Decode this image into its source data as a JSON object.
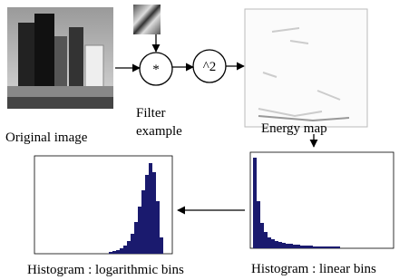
{
  "original_image": {
    "label": "Original image"
  },
  "filter": {
    "operator": "*",
    "label_lines": [
      "Filter",
      "example"
    ]
  },
  "square": {
    "operator": "^2"
  },
  "energy_map": {
    "label": "Energy map"
  },
  "histogram_linear": {
    "label": "Histogram : linear bins"
  },
  "histogram_log": {
    "label": "Histogram : logarithmic bins"
  }
}
